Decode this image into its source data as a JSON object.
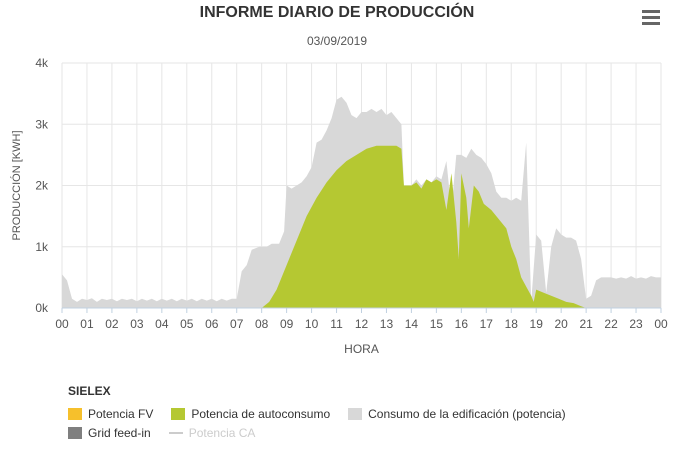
{
  "title": "INFORME DIARIO DE PRODUCCIÓN",
  "subtitle": "03/09/2019",
  "menu_icon": "hamburger-menu-icon",
  "chart_data": {
    "type": "area",
    "title": "INFORME DIARIO DE PRODUCCIÓN",
    "subtitle": "03/09/2019",
    "xlabel": "HORA",
    "ylabel": "PRODUCCIÓN [KWH]",
    "xlim": [
      0,
      24
    ],
    "ylim": [
      0,
      4000
    ],
    "x_ticks": [
      "00",
      "01",
      "02",
      "03",
      "04",
      "05",
      "06",
      "07",
      "08",
      "09",
      "10",
      "11",
      "12",
      "13",
      "14",
      "15",
      "16",
      "17",
      "18",
      "19",
      "20",
      "21",
      "22",
      "23",
      "00"
    ],
    "y_ticks": [
      "0k",
      "1k",
      "2k",
      "3k",
      "4k"
    ],
    "grid": true,
    "series": [
      {
        "name": "Consumo de la edificación (potencia)",
        "color": "#d8d8d8",
        "points": [
          [
            0,
            550
          ],
          [
            0.2,
            450
          ],
          [
            0.4,
            150
          ],
          [
            0.6,
            100
          ],
          [
            0.8,
            150
          ],
          [
            1.0,
            130
          ],
          [
            1.2,
            160
          ],
          [
            1.4,
            100
          ],
          [
            1.6,
            150
          ],
          [
            1.8,
            130
          ],
          [
            2.0,
            150
          ],
          [
            2.2,
            110
          ],
          [
            2.4,
            150
          ],
          [
            2.6,
            130
          ],
          [
            2.8,
            150
          ],
          [
            3.0,
            110
          ],
          [
            3.2,
            150
          ],
          [
            3.4,
            120
          ],
          [
            3.6,
            150
          ],
          [
            3.8,
            110
          ],
          [
            4.0,
            150
          ],
          [
            4.2,
            120
          ],
          [
            4.4,
            150
          ],
          [
            4.6,
            110
          ],
          [
            4.8,
            150
          ],
          [
            5.0,
            120
          ],
          [
            5.2,
            150
          ],
          [
            5.4,
            110
          ],
          [
            5.6,
            150
          ],
          [
            5.8,
            120
          ],
          [
            6.0,
            150
          ],
          [
            6.2,
            110
          ],
          [
            6.4,
            150
          ],
          [
            6.6,
            120
          ],
          [
            6.8,
            150
          ],
          [
            7.0,
            150
          ],
          [
            7.2,
            600
          ],
          [
            7.4,
            700
          ],
          [
            7.6,
            950
          ],
          [
            7.9,
            1000
          ],
          [
            8.2,
            1000
          ],
          [
            8.4,
            1050
          ],
          [
            8.7,
            1050
          ],
          [
            8.9,
            1250
          ],
          [
            9.0,
            2000
          ],
          [
            9.2,
            1950
          ],
          [
            9.4,
            2000
          ],
          [
            9.6,
            2050
          ],
          [
            9.8,
            2150
          ],
          [
            10.0,
            2300
          ],
          [
            10.2,
            2700
          ],
          [
            10.4,
            2750
          ],
          [
            10.6,
            2900
          ],
          [
            10.8,
            3100
          ],
          [
            11.0,
            3400
          ],
          [
            11.2,
            3450
          ],
          [
            11.4,
            3350
          ],
          [
            11.6,
            3150
          ],
          [
            11.8,
            3100
          ],
          [
            12.0,
            3200
          ],
          [
            12.2,
            3200
          ],
          [
            12.4,
            3250
          ],
          [
            12.6,
            3200
          ],
          [
            12.8,
            3250
          ],
          [
            13.0,
            3150
          ],
          [
            13.2,
            3200
          ],
          [
            13.4,
            3100
          ],
          [
            13.6,
            3000
          ],
          [
            13.7,
            2000
          ],
          [
            14.0,
            2000
          ],
          [
            14.2,
            2100
          ],
          [
            14.4,
            2000
          ],
          [
            14.6,
            2100
          ],
          [
            14.8,
            2050
          ],
          [
            15.0,
            2150
          ],
          [
            15.2,
            2100
          ],
          [
            15.4,
            2400
          ],
          [
            15.6,
            1600
          ],
          [
            15.8,
            2500
          ],
          [
            16.0,
            2500
          ],
          [
            16.2,
            2450
          ],
          [
            16.4,
            2600
          ],
          [
            16.6,
            2500
          ],
          [
            16.8,
            2450
          ],
          [
            17.0,
            2350
          ],
          [
            17.2,
            2200
          ],
          [
            17.4,
            1900
          ],
          [
            17.6,
            1800
          ],
          [
            17.8,
            1800
          ],
          [
            18.0,
            1750
          ],
          [
            18.2,
            1800
          ],
          [
            18.4,
            1750
          ],
          [
            18.6,
            2700
          ],
          [
            18.8,
            100
          ],
          [
            19.0,
            1200
          ],
          [
            19.2,
            1100
          ],
          [
            19.4,
            250
          ],
          [
            19.6,
            1000
          ],
          [
            19.8,
            1300
          ],
          [
            20.0,
            1200
          ],
          [
            20.2,
            1150
          ],
          [
            20.4,
            1150
          ],
          [
            20.6,
            1100
          ],
          [
            20.8,
            800
          ],
          [
            21.0,
            150
          ],
          [
            21.2,
            200
          ],
          [
            21.4,
            450
          ],
          [
            21.6,
            500
          ],
          [
            21.8,
            500
          ],
          [
            22.0,
            500
          ],
          [
            22.2,
            480
          ],
          [
            22.4,
            500
          ],
          [
            22.6,
            480
          ],
          [
            22.8,
            520
          ],
          [
            23.0,
            480
          ],
          [
            23.2,
            500
          ],
          [
            23.4,
            480
          ],
          [
            23.6,
            520
          ],
          [
            23.8,
            500
          ],
          [
            24.0,
            500
          ]
        ]
      },
      {
        "name": "Potencia de autoconsumo",
        "color": "#b5c832",
        "points": [
          [
            8.0,
            0
          ],
          [
            8.3,
            100
          ],
          [
            8.6,
            300
          ],
          [
            9.0,
            700
          ],
          [
            9.4,
            1100
          ],
          [
            9.8,
            1500
          ],
          [
            10.2,
            1800
          ],
          [
            10.6,
            2050
          ],
          [
            11.0,
            2250
          ],
          [
            11.4,
            2400
          ],
          [
            11.8,
            2500
          ],
          [
            12.2,
            2600
          ],
          [
            12.6,
            2650
          ],
          [
            13.0,
            2650
          ],
          [
            13.4,
            2650
          ],
          [
            13.6,
            2600
          ],
          [
            13.7,
            2000
          ],
          [
            14.0,
            2000
          ],
          [
            14.2,
            2050
          ],
          [
            14.4,
            1950
          ],
          [
            14.6,
            2100
          ],
          [
            14.8,
            2050
          ],
          [
            15.0,
            2100
          ],
          [
            15.2,
            2050
          ],
          [
            15.4,
            1600
          ],
          [
            15.6,
            2200
          ],
          [
            15.8,
            1400
          ],
          [
            15.9,
            800
          ],
          [
            16.0,
            2200
          ],
          [
            16.2,
            1800
          ],
          [
            16.3,
            1300
          ],
          [
            16.5,
            2000
          ],
          [
            16.7,
            1900
          ],
          [
            16.9,
            1700
          ],
          [
            17.2,
            1600
          ],
          [
            17.4,
            1500
          ],
          [
            17.6,
            1400
          ],
          [
            17.8,
            1300
          ],
          [
            18.0,
            1000
          ],
          [
            18.2,
            800
          ],
          [
            18.4,
            500
          ],
          [
            18.6,
            350
          ],
          [
            18.8,
            200
          ],
          [
            18.9,
            100
          ],
          [
            19.0,
            300
          ],
          [
            19.3,
            250
          ],
          [
            19.6,
            200
          ],
          [
            19.9,
            150
          ],
          [
            20.2,
            100
          ],
          [
            20.5,
            80
          ],
          [
            20.8,
            30
          ],
          [
            21.0,
            0
          ]
        ]
      },
      {
        "name": "Potencia FV",
        "color": "#f6c02c",
        "points": []
      },
      {
        "name": "Grid feed-in",
        "color": "#7f7f7f",
        "points": []
      },
      {
        "name": "Potencia CA",
        "color": "#cccccc",
        "points": [],
        "disabled": true
      }
    ],
    "legend": {
      "title": "SIELEX",
      "placement": "bottom-left",
      "rows": [
        [
          {
            "label": "Potencia FV",
            "color": "#f6c02c",
            "kind": "box"
          },
          {
            "label": "Potencia de autoconsumo",
            "color": "#b5c832",
            "kind": "box"
          },
          {
            "label": "Consumo de la edificación (potencia)",
            "color": "#d8d8d8",
            "kind": "box"
          }
        ],
        [
          {
            "label": "Grid feed-in",
            "color": "#7f7f7f",
            "kind": "box"
          },
          {
            "label": "Potencia CA",
            "color": "#cccccc",
            "kind": "line",
            "disabled": true
          }
        ]
      ]
    }
  }
}
